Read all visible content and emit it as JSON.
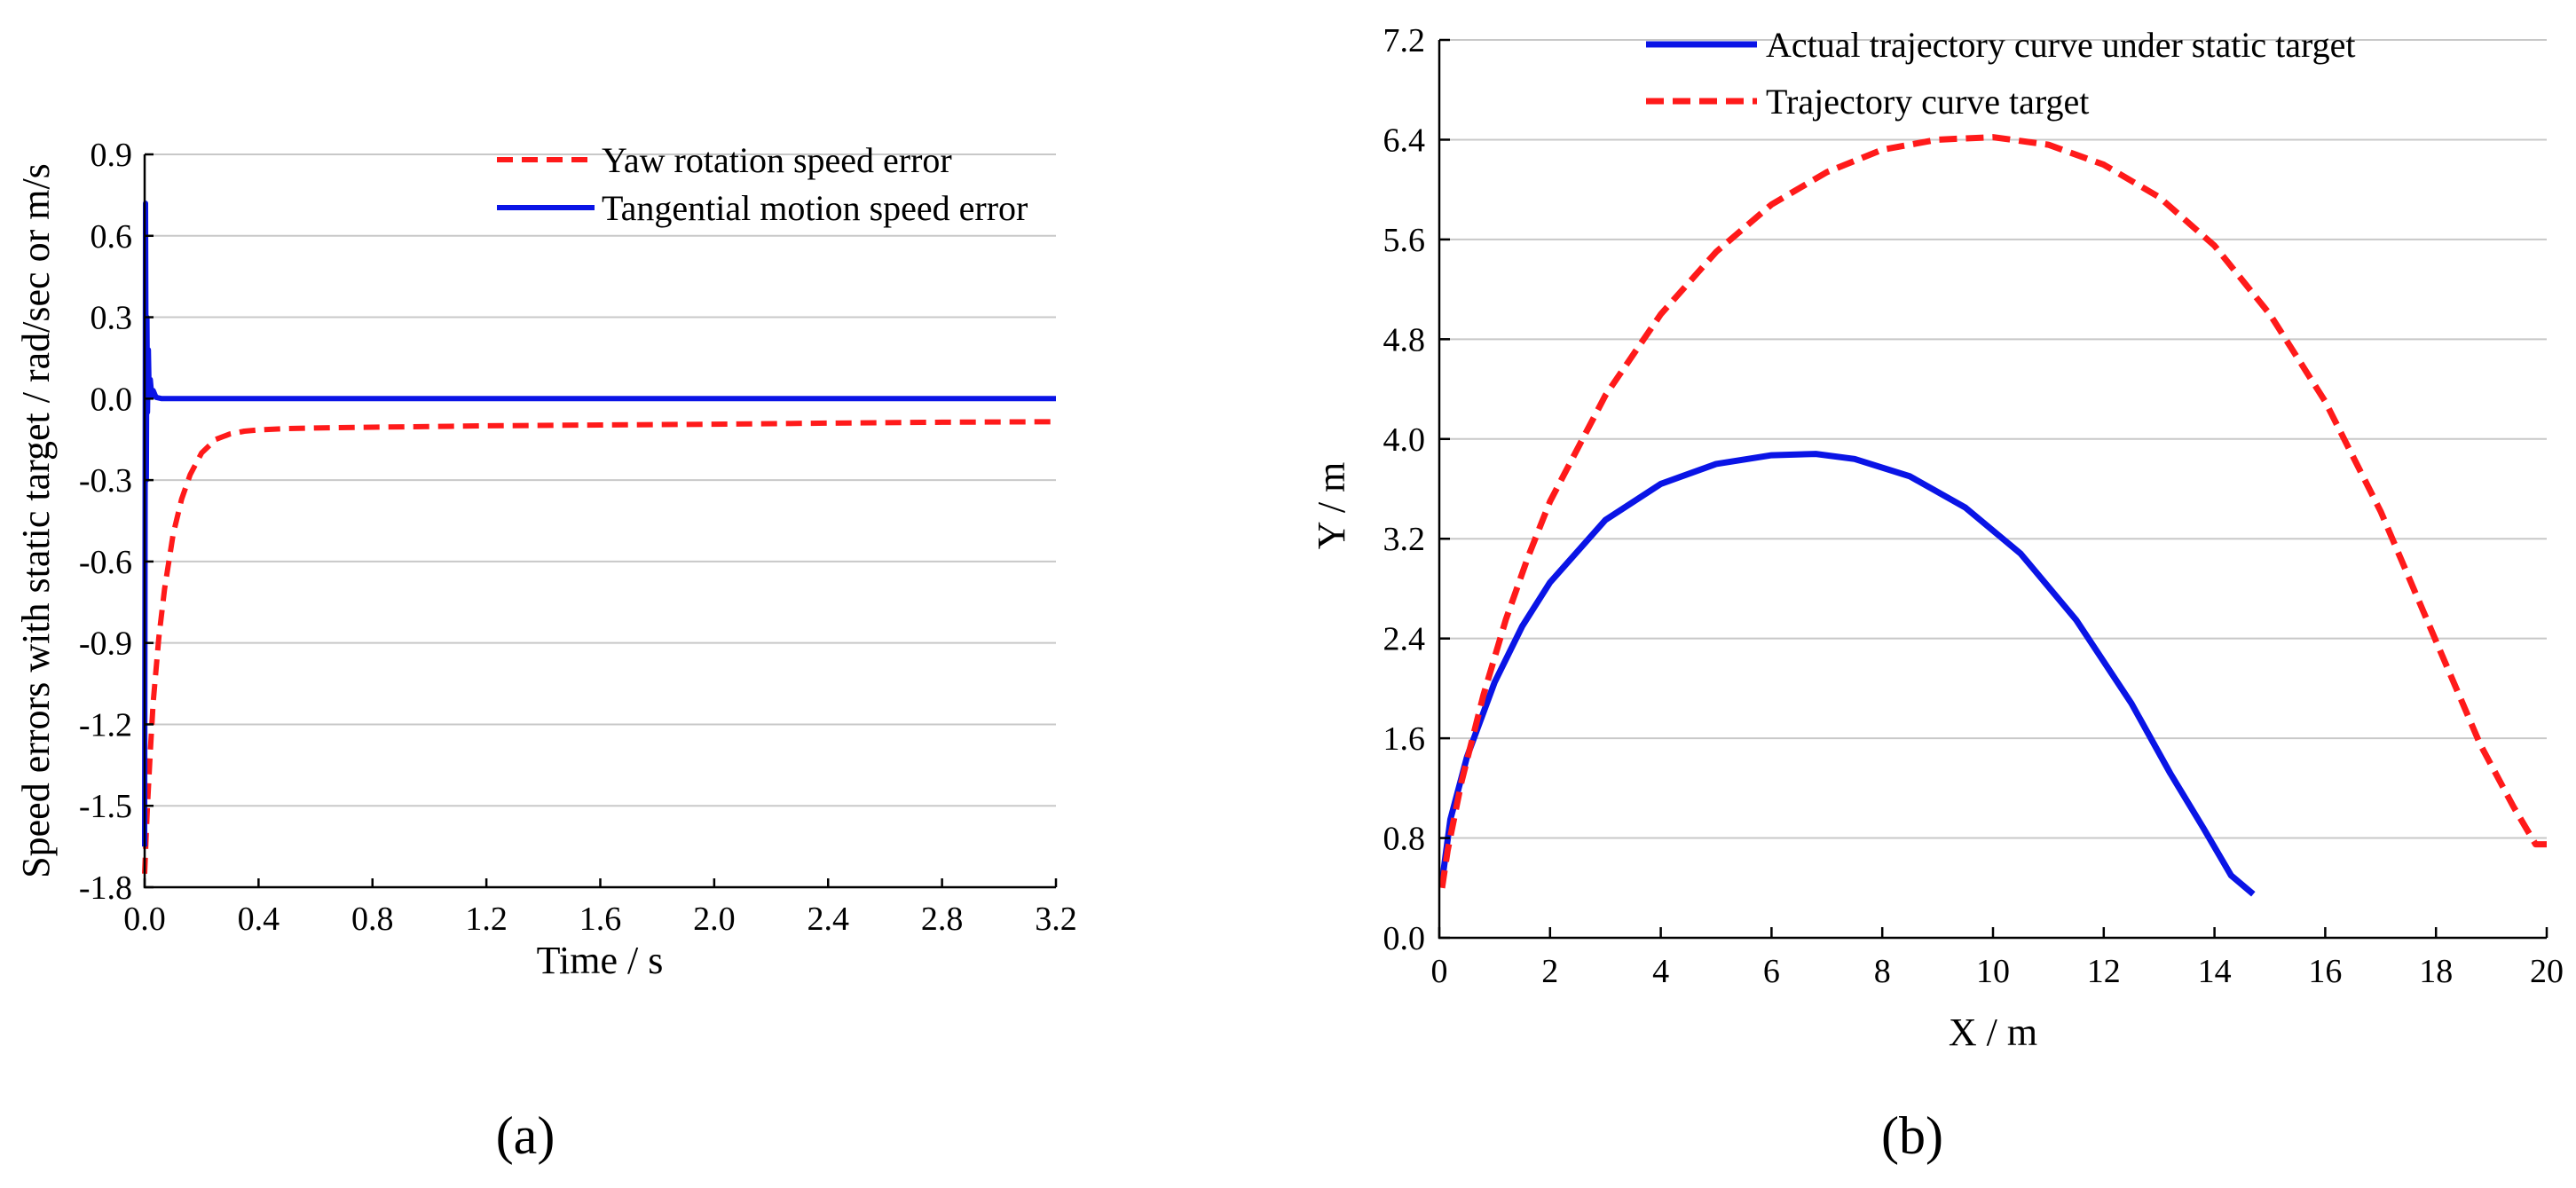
{
  "chart_data": [
    {
      "type": "line",
      "panel_label": "(a)",
      "title": "",
      "xlabel": "Time / s",
      "ylabel": "Speed errors with static target / rad/sec or m/s",
      "xlim": [
        0.0,
        3.2
      ],
      "ylim": [
        -1.8,
        0.9
      ],
      "xticks": [
        "0.0",
        "0.4",
        "0.8",
        "1.2",
        "1.6",
        "2.0",
        "2.4",
        "2.8",
        "3.2"
      ],
      "yticks": [
        "0.9",
        "0.6",
        "0.3",
        "0.0",
        "-0.3",
        "-0.6",
        "-0.9",
        "-1.2",
        "-1.5",
        "-1.8"
      ],
      "grid": true,
      "legend_position": "top-right",
      "series": [
        {
          "name": "Yaw rotation speed error",
          "color": "#ff1a1a",
          "style": "dashed",
          "x": [
            0.0,
            0.005,
            0.01,
            0.02,
            0.03,
            0.05,
            0.07,
            0.1,
            0.13,
            0.16,
            0.2,
            0.25,
            0.3,
            0.35,
            0.4,
            0.5,
            0.6,
            0.8,
            1.0,
            1.2,
            1.6,
            2.0,
            2.4,
            2.8,
            3.2
          ],
          "y": [
            -1.75,
            -1.62,
            -1.5,
            -1.3,
            -1.12,
            -0.88,
            -0.7,
            -0.5,
            -0.37,
            -0.28,
            -0.2,
            -0.15,
            -0.13,
            -0.12,
            -0.115,
            -0.11,
            -0.108,
            -0.105,
            -0.103,
            -0.1,
            -0.097,
            -0.094,
            -0.09,
            -0.087,
            -0.085
          ]
        },
        {
          "name": "Tangential motion speed error",
          "color": "#0a14e6",
          "style": "solid",
          "x": [
            0.0,
            0.003,
            0.006,
            0.008,
            0.01,
            0.013,
            0.016,
            0.02,
            0.025,
            0.03,
            0.04,
            0.06,
            0.1,
            0.5,
            1.0,
            2.0,
            3.2
          ],
          "y": [
            -1.65,
            0.72,
            -0.3,
            0.3,
            -0.05,
            0.18,
            0.02,
            0.07,
            0.01,
            0.03,
            0.005,
            0.0,
            0.0,
            0.0,
            0.0,
            0.0,
            0.0
          ]
        }
      ]
    },
    {
      "type": "line",
      "panel_label": "(b)",
      "title": "",
      "xlabel": "X / m",
      "ylabel": "Y / m",
      "xlim": [
        0,
        20
      ],
      "ylim": [
        0.0,
        7.2
      ],
      "xticks": [
        "0",
        "2",
        "4",
        "6",
        "8",
        "10",
        "12",
        "14",
        "16",
        "18",
        "20"
      ],
      "yticks": [
        "7.2",
        "6.4",
        "5.6",
        "4.8",
        "4.0",
        "3.2",
        "2.4",
        "1.6",
        "0.8",
        "0.0"
      ],
      "grid": true,
      "legend_position": "top-right",
      "series": [
        {
          "name": "Actual trajectory curve under static target",
          "color": "#0a14e6",
          "style": "solid",
          "x": [
            0.05,
            0.2,
            0.5,
            1.0,
            1.5,
            2.0,
            3.0,
            4.0,
            5.0,
            6.0,
            6.8,
            7.5,
            8.5,
            9.5,
            10.5,
            11.5,
            12.5,
            13.2,
            13.8,
            14.3,
            14.7
          ],
          "y": [
            0.45,
            0.95,
            1.45,
            2.05,
            2.5,
            2.85,
            3.35,
            3.64,
            3.8,
            3.87,
            3.88,
            3.84,
            3.7,
            3.45,
            3.08,
            2.55,
            1.88,
            1.32,
            0.88,
            0.5,
            0.35
          ]
        },
        {
          "name": "Trajectory curve target",
          "color": "#ff1a1a",
          "style": "dashed",
          "x": [
            0.05,
            0.15,
            0.4,
            0.8,
            1.2,
            1.6,
            2.0,
            3.0,
            4.0,
            5.0,
            6.0,
            7.0,
            8.0,
            9.0,
            10.0,
            11.0,
            12.0,
            13.0,
            14.0,
            15.0,
            16.0,
            17.0,
            18.0,
            18.8,
            19.4,
            19.8,
            20.0
          ],
          "y": [
            0.4,
            0.7,
            1.25,
            1.95,
            2.55,
            3.05,
            3.5,
            4.35,
            5.0,
            5.5,
            5.88,
            6.14,
            6.32,
            6.4,
            6.42,
            6.36,
            6.2,
            5.94,
            5.55,
            5.0,
            4.3,
            3.42,
            2.38,
            1.55,
            1.05,
            0.75,
            0.75
          ]
        }
      ]
    }
  ]
}
